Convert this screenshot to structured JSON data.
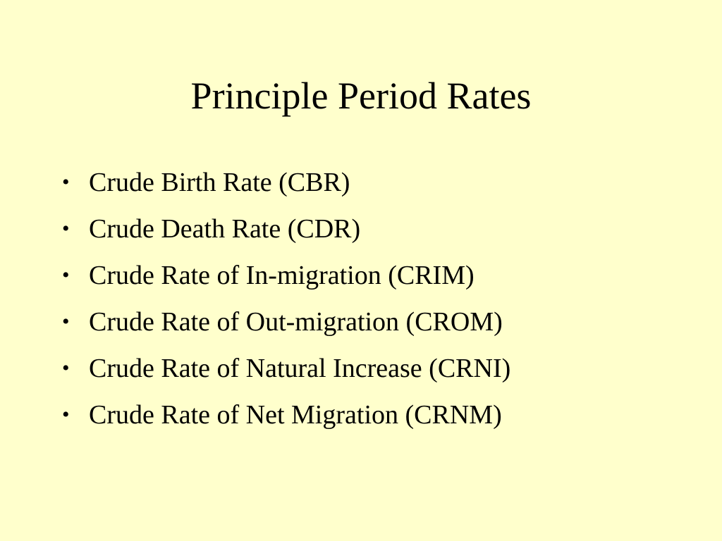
{
  "slide": {
    "title": "Principle Period Rates",
    "bullet_glyph": "•",
    "items": [
      "Crude Birth Rate (CBR)",
      "Crude Death Rate (CDR)",
      "Crude Rate of In-migration (CRIM)",
      "Crude Rate of Out-migration (CROM)",
      "Crude Rate of Natural Increase (CRNI)",
      "Crude Rate of Net Migration (CRNM)"
    ]
  },
  "colors": {
    "background": "#FFFFCC",
    "text": "#000000"
  }
}
